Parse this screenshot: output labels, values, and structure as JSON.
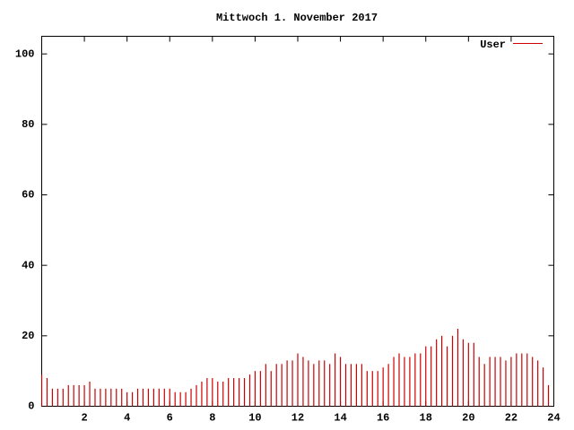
{
  "chart_data": {
    "type": "impulse",
    "title": "Mittwoch 1. November 2017",
    "x": [
      0,
      0.25,
      0.5,
      0.75,
      1,
      1.25,
      1.5,
      1.75,
      2,
      2.25,
      2.5,
      2.75,
      3,
      3.25,
      3.5,
      3.75,
      4,
      4.25,
      4.5,
      4.75,
      5,
      5.25,
      5.5,
      5.75,
      6,
      6.25,
      6.5,
      6.75,
      7,
      7.25,
      7.5,
      7.75,
      8,
      8.25,
      8.5,
      8.75,
      9,
      9.25,
      9.5,
      9.75,
      10,
      10.25,
      10.5,
      10.75,
      11,
      11.25,
      11.5,
      11.75,
      12,
      12.25,
      12.5,
      12.75,
      13,
      13.25,
      13.5,
      13.75,
      14,
      14.25,
      14.5,
      14.75,
      15,
      15.25,
      15.5,
      15.75,
      16,
      16.25,
      16.5,
      16.75,
      17,
      17.25,
      17.5,
      17.75,
      18,
      18.25,
      18.5,
      18.75,
      19,
      19.25,
      19.5,
      19.75,
      20,
      20.25,
      20.5,
      20.75,
      21,
      21.25,
      21.5,
      21.75,
      22,
      22.25,
      22.5,
      22.75,
      23,
      23.25,
      23.5,
      23.75
    ],
    "series": [
      {
        "name": "User",
        "color": "#cc0000",
        "values": [
          9,
          8,
          5,
          5,
          5,
          6,
          6,
          6,
          6,
          7,
          5,
          5,
          5,
          5,
          5,
          5,
          4,
          4,
          5,
          5,
          5,
          5,
          5,
          5,
          5,
          4,
          4,
          4,
          5,
          6,
          7,
          8,
          8,
          7,
          7,
          8,
          8,
          8,
          8,
          9,
          10,
          10,
          12,
          10,
          12,
          12,
          13,
          13,
          15,
          14,
          13,
          12,
          13,
          13,
          12,
          15,
          14,
          12,
          12,
          12,
          12,
          10,
          10,
          10,
          11,
          12,
          14,
          15,
          14,
          14,
          15,
          15,
          17,
          17,
          19,
          20,
          17,
          20,
          22,
          19,
          18,
          18,
          14,
          12,
          14,
          14,
          14,
          13,
          14,
          15,
          15,
          15,
          14,
          13,
          11,
          6
        ]
      }
    ],
    "xlim": [
      0,
      24
    ],
    "ylim": [
      0,
      105
    ],
    "xticks": [
      2,
      4,
      6,
      8,
      10,
      12,
      14,
      16,
      18,
      20,
      22,
      24
    ],
    "yticks": [
      0,
      20,
      40,
      60,
      80,
      100
    ]
  }
}
